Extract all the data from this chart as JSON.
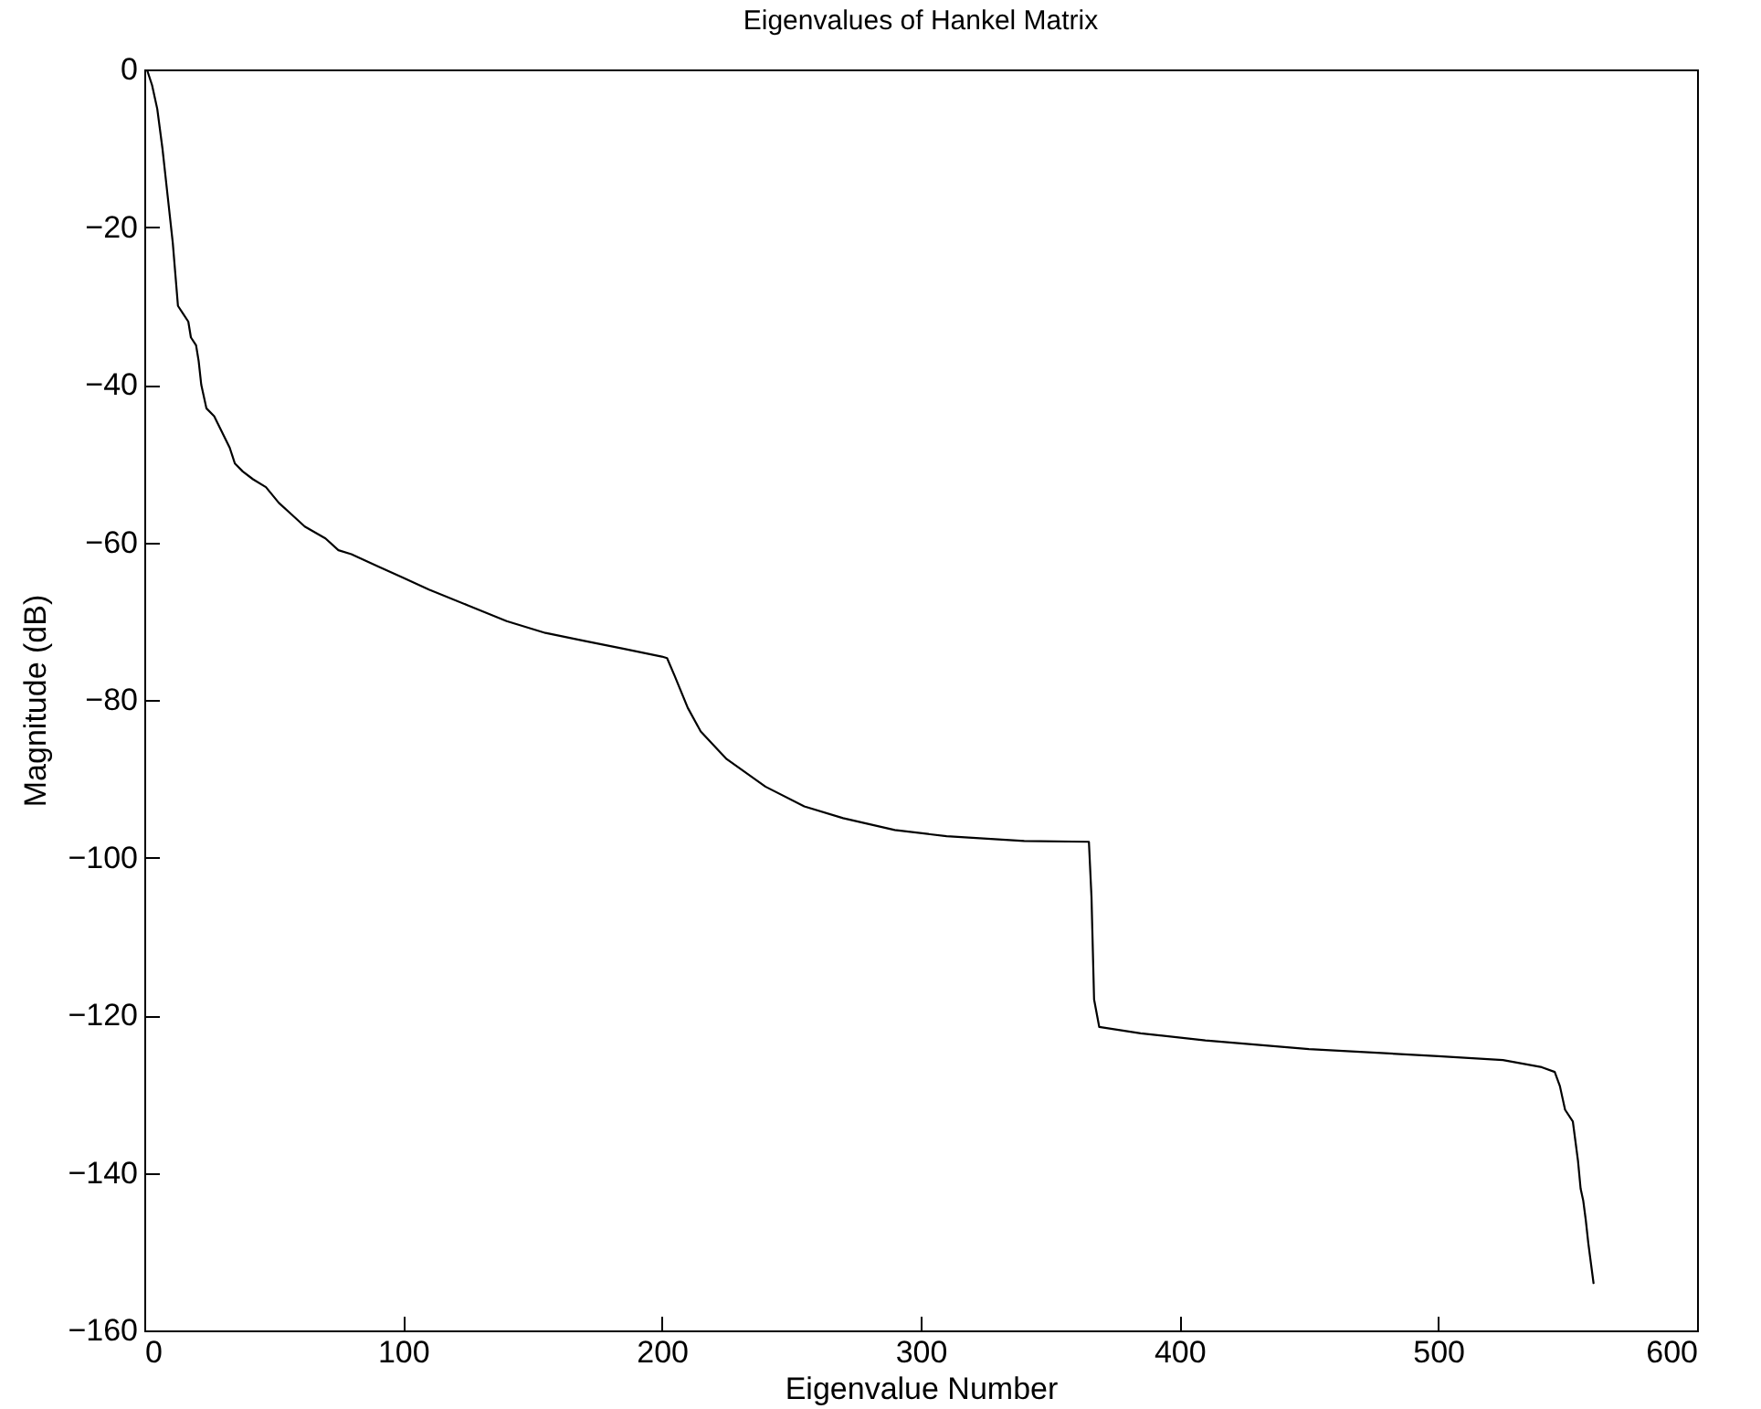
{
  "chart_data": {
    "type": "line",
    "title": "Eigenvalues of Hankel Matrix",
    "xlabel": "Eigenvalue Number",
    "ylabel": "Magnitude (dB)",
    "xlim": [
      0,
      600
    ],
    "xticks": [
      0,
      100,
      200,
      300,
      400,
      500,
      600
    ],
    "ylim": [
      -160,
      0
    ],
    "yticks": [
      -160,
      -140,
      -120,
      -100,
      -80,
      -60,
      -40,
      -20,
      0
    ],
    "grid": false,
    "marker": "none",
    "line_style": "solid",
    "series": [
      {
        "color": "#000000",
        "x": [
          1,
          3,
          5,
          7,
          9,
          11,
          12,
          13,
          15,
          17,
          18,
          20,
          21,
          22,
          24,
          27,
          30,
          33,
          35,
          38,
          42,
          47,
          52,
          57,
          62,
          70,
          75,
          80,
          90,
          100,
          110,
          125,
          140,
          155,
          170,
          185,
          200,
          202,
          205,
          210,
          215,
          225,
          240,
          255,
          270,
          290,
          310,
          340,
          365,
          366,
          367,
          369,
          385,
          410,
          450,
          500,
          525,
          540,
          545,
          547,
          549,
          552,
          553,
          554,
          555,
          556,
          557,
          558,
          560
        ],
        "values": [
          0,
          -2,
          -5,
          -10,
          -16,
          -22,
          -26,
          -30,
          -31,
          -32,
          -34,
          -35,
          -37,
          -40,
          -43,
          -44,
          -46,
          -48,
          -50,
          -51,
          -52,
          -53,
          -55,
          -56.5,
          -58,
          -59.5,
          -61,
          -61.5,
          -63,
          -64.5,
          -66,
          -68,
          -70,
          -71.5,
          -72.5,
          -73.5,
          -74.5,
          -74.7,
          -77,
          -81,
          -84,
          -87.5,
          -91,
          -93.5,
          -95,
          -96.5,
          -97.3,
          -97.9,
          -98,
          -105,
          -118,
          -121.5,
          -122.3,
          -123.2,
          -124.3,
          -125.2,
          -125.7,
          -126.6,
          -127.2,
          -129,
          -132,
          -133.5,
          -136,
          -138.5,
          -142,
          -143.5,
          -146,
          -149,
          -154
        ]
      }
    ]
  }
}
